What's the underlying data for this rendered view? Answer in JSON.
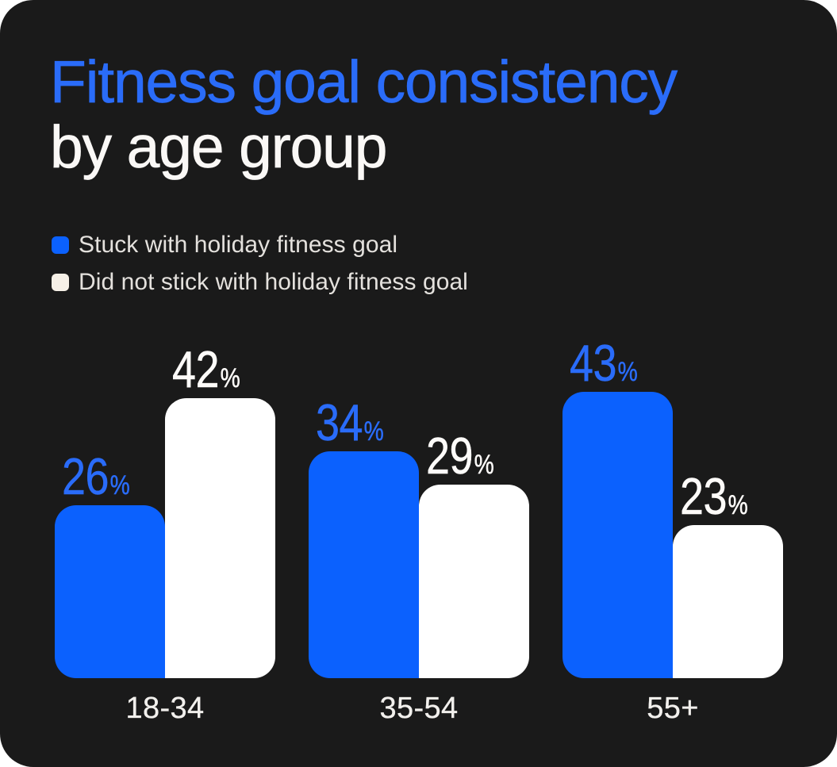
{
  "card": {
    "background": "#1A1A1A",
    "page_background": "#FFFFFF"
  },
  "title": {
    "line1": "Fitness goal consistency",
    "line2": "by age group",
    "line1_color": "#2A6CF9",
    "line2_color": "#FAF8F6"
  },
  "legend": {
    "items": [
      {
        "label": "Stuck with holiday fitness goal",
        "swatch_color": "#0B61FE"
      },
      {
        "label": "Did not stick with holiday fitness goal",
        "swatch_color": "#F6F0E7"
      }
    ],
    "text_color": "#E4E1DD"
  },
  "chart_data": {
    "type": "bar",
    "title": "Fitness goal consistency by age group",
    "categories": [
      "18-34",
      "35-54",
      "55+"
    ],
    "series": [
      {
        "name": "Stuck with holiday fitness goal",
        "key": "stuck",
        "color": "#0B61FE",
        "label_color": "#2A6CF9",
        "values": [
          26,
          34,
          43
        ]
      },
      {
        "name": "Did not stick with holiday fitness goal",
        "key": "did-not-stick",
        "color": "#FFFFFF",
        "label_color": "#FDFBF9",
        "values": [
          42,
          29,
          23
        ]
      }
    ],
    "value_suffix": "%",
    "ylim": [
      0,
      50
    ],
    "grid": false,
    "axes_shown": false,
    "legend_position": "top-left",
    "category_label_color": "#F2F0ED"
  }
}
